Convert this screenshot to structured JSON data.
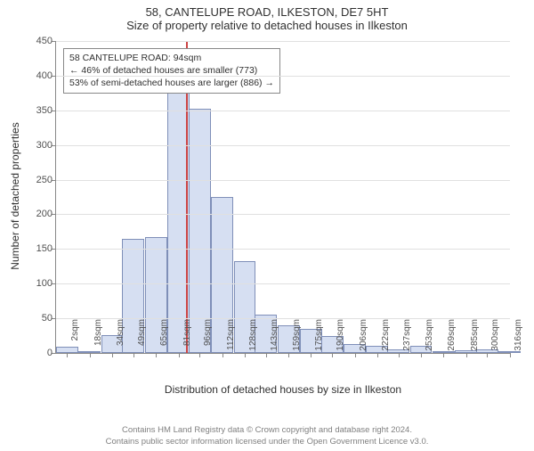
{
  "title_main": "58, CANTELUPE ROAD, ILKESTON, DE7 5HT",
  "title_sub": "Size of property relative to detached houses in Ilkeston",
  "y_label": "Number of detached properties",
  "x_axis_title": "Distribution of detached houses by size in Ilkeston",
  "license_line1": "Contains HM Land Registry data © Crown copyright and database right 2024.",
  "license_line2": "Contains public sector information licensed under the Open Government Licence v3.0.",
  "chart": {
    "type": "histogram",
    "bar_fill": "#d6dff2",
    "bar_border": "#7f8fb8",
    "grid_color": "#e0e0e0",
    "background_color": "#ffffff",
    "ref_line_color": "#cc4444",
    "ref_line_x": 94,
    "ylim": [
      0,
      450
    ],
    "ytick_step": 50,
    "x_categories": [
      "2sqm",
      "18sqm",
      "34sqm",
      "49sqm",
      "65sqm",
      "81sqm",
      "96sqm",
      "112sqm",
      "128sqm",
      "143sqm",
      "159sqm",
      "175sqm",
      "190sqm",
      "206sqm",
      "222sqm",
      "237sqm",
      "253sqm",
      "269sqm",
      "285sqm",
      "300sqm",
      "316sqm"
    ],
    "x_min": 2,
    "x_max": 324,
    "bar_width_value": 15.7,
    "bars": [
      {
        "x": 2,
        "y": 9
      },
      {
        "x": 18,
        "y": 3
      },
      {
        "x": 34,
        "y": 26
      },
      {
        "x": 49,
        "y": 165
      },
      {
        "x": 65,
        "y": 167
      },
      {
        "x": 81,
        "y": 403
      },
      {
        "x": 96,
        "y": 352
      },
      {
        "x": 112,
        "y": 225
      },
      {
        "x": 128,
        "y": 133
      },
      {
        "x": 143,
        "y": 55
      },
      {
        "x": 159,
        "y": 40
      },
      {
        "x": 175,
        "y": 35
      },
      {
        "x": 190,
        "y": 25
      },
      {
        "x": 206,
        "y": 13
      },
      {
        "x": 222,
        "y": 10
      },
      {
        "x": 237,
        "y": 5
      },
      {
        "x": 253,
        "y": 10
      },
      {
        "x": 269,
        "y": 3
      },
      {
        "x": 285,
        "y": 4
      },
      {
        "x": 300,
        "y": 5
      },
      {
        "x": 316,
        "y": 1
      }
    ],
    "y_ticks": [
      0,
      50,
      100,
      150,
      200,
      250,
      300,
      350,
      400,
      450
    ],
    "annotation": {
      "line1": "58 CANTELUPE ROAD: 94sqm",
      "line2": "← 46% of detached houses are smaller (773)",
      "line3": "53% of semi-detached houses are larger (886) →"
    }
  }
}
